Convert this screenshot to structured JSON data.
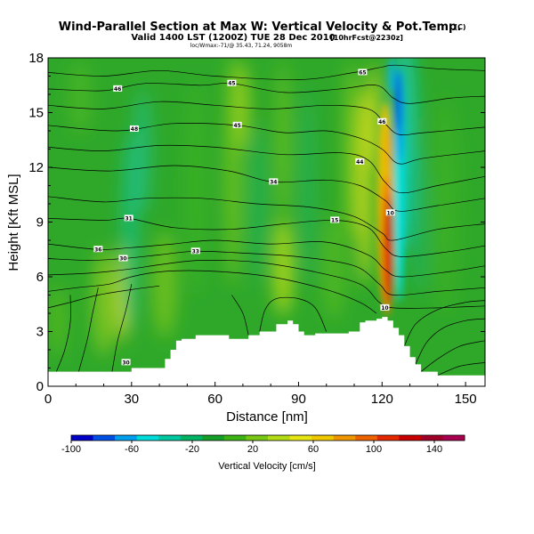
{
  "title": "Wind-Parallel Section at Max W: Vertical Velocity & Pot.Temp.",
  "title_mark": "(C)",
  "subtitle": "Valid 1400 LST (1200Z) TUE 28 Dec 2010",
  "subtitle_extra": "[10hrFcst@2230z]",
  "subtitle_small": "loc/Wmax:-71/@ 35.43, 71.24, 9058m",
  "colors": {
    "background": "#ffffff",
    "terrain": "#ffffff",
    "contour": "#000000",
    "field_base": "#2fa82a"
  },
  "chart_data": {
    "type": "heatmap",
    "xlabel": "Distance [nm]",
    "ylabel": "Height [Kft MSL]",
    "xlim": [
      0,
      157
    ],
    "ylim": [
      0,
      18
    ],
    "x_ticks": [
      0,
      30,
      60,
      90,
      120,
      150
    ],
    "x_tick_labels": [
      "0",
      "30",
      "60",
      "90",
      "120",
      "150"
    ],
    "y_ticks": [
      0,
      3,
      6,
      9,
      12,
      15,
      18
    ],
    "y_tick_labels": [
      "0",
      "3",
      "6",
      "9",
      "12",
      "15",
      "18"
    ],
    "colorbar": {
      "label": "Vertical Velocity [cm/s]",
      "min": -100,
      "max": 160,
      "tick_values": [
        -100,
        -60,
        -20,
        20,
        60,
        100,
        140
      ],
      "tick_labels": [
        "-100",
        "-60",
        "-20",
        "20",
        "60",
        "100",
        "140"
      ],
      "colors": [
        "#0000c8",
        "#0050e6",
        "#00a0f0",
        "#00dcdc",
        "#00c8a0",
        "#00b464",
        "#14a028",
        "#3cb414",
        "#78c814",
        "#b4dc14",
        "#e6e614",
        "#f0c800",
        "#f09600",
        "#f06400",
        "#e62800",
        "#c80000",
        "#a00028",
        "#aa0050"
      ]
    },
    "terrain_height_kft": [
      [
        0,
        0.8
      ],
      [
        10,
        0.8
      ],
      [
        20,
        0.8
      ],
      [
        29,
        0.8
      ],
      [
        30,
        1.0
      ],
      [
        40,
        1.0
      ],
      [
        42,
        1.5
      ],
      [
        44,
        2.0
      ],
      [
        46,
        2.5
      ],
      [
        48,
        2.6
      ],
      [
        50,
        2.6
      ],
      [
        53,
        2.8
      ],
      [
        58,
        2.8
      ],
      [
        60,
        2.8
      ],
      [
        65,
        2.6
      ],
      [
        68,
        2.6
      ],
      [
        72,
        2.8
      ],
      [
        76,
        3.0
      ],
      [
        80,
        3.0
      ],
      [
        82,
        3.4
      ],
      [
        86,
        3.6
      ],
      [
        88,
        3.4
      ],
      [
        90,
        3.0
      ],
      [
        92,
        2.8
      ],
      [
        96,
        2.9
      ],
      [
        104,
        2.9
      ],
      [
        108,
        3.0
      ],
      [
        112,
        3.5
      ],
      [
        114,
        3.6
      ],
      [
        118,
        3.7
      ],
      [
        120,
        3.8
      ],
      [
        122,
        3.6
      ],
      [
        124,
        3.2
      ],
      [
        126,
        2.8
      ],
      [
        128,
        2.2
      ],
      [
        130,
        1.6
      ],
      [
        132,
        1.2
      ],
      [
        134,
        0.8
      ],
      [
        140,
        0.6
      ],
      [
        157,
        0.4
      ]
    ],
    "velocity_features": [
      {
        "x": 124,
        "y": 8.8,
        "w_cm_s": 150
      },
      {
        "x": 123,
        "y": 12.0,
        "w_cm_s": 70
      },
      {
        "x": 125,
        "y": 15.0,
        "w_cm_s": -90
      },
      {
        "x": 127,
        "y": 12.5,
        "w_cm_s": -35
      },
      {
        "x": 108,
        "y": 12.0,
        "w_cm_s": 45
      },
      {
        "x": 27,
        "y": 3.5,
        "w_cm_s": 45
      },
      {
        "x": 79,
        "y": 7.0,
        "w_cm_s": 45
      },
      {
        "x": 28,
        "y": 10.0,
        "w_cm_s": -15
      }
    ],
    "contour_labels": [
      {
        "text": "46",
        "x": 25,
        "y": 16.3
      },
      {
        "text": "45",
        "x": 66,
        "y": 16.6
      },
      {
        "text": "48",
        "x": 31,
        "y": 14.1
      },
      {
        "text": "45",
        "x": 68,
        "y": 14.3
      },
      {
        "text": "65",
        "x": 113,
        "y": 17.2
      },
      {
        "text": "46",
        "x": 120,
        "y": 14.5
      },
      {
        "text": "44",
        "x": 112,
        "y": 12.3
      },
      {
        "text": "34",
        "x": 81,
        "y": 11.2
      },
      {
        "text": "31",
        "x": 29,
        "y": 9.2
      },
      {
        "text": "15",
        "x": 103,
        "y": 9.1
      },
      {
        "text": "36",
        "x": 18,
        "y": 7.5
      },
      {
        "text": "30",
        "x": 27,
        "y": 7.0
      },
      {
        "text": "33",
        "x": 53,
        "y": 7.4
      },
      {
        "text": "10",
        "x": 123,
        "y": 9.5
      },
      {
        "text": "10",
        "x": 121,
        "y": 4.3
      },
      {
        "text": "30",
        "x": 28,
        "y": 1.3
      }
    ],
    "contours": [
      [
        [
          0,
          17.2
        ],
        [
          20,
          17.0
        ],
        [
          40,
          17.3
        ],
        [
          60,
          17.0
        ],
        [
          90,
          16.8
        ],
        [
          110,
          17.2
        ],
        [
          120,
          17.5
        ],
        [
          125,
          17.6
        ],
        [
          140,
          17.4
        ],
        [
          157,
          17.3
        ]
      ],
      [
        [
          0,
          16.3
        ],
        [
          20,
          16.2
        ],
        [
          35,
          16.6
        ],
        [
          55,
          16.5
        ],
        [
          66,
          16.6
        ],
        [
          85,
          16.1
        ],
        [
          105,
          16.3
        ],
        [
          118,
          16.5
        ],
        [
          124,
          15.8
        ],
        [
          130,
          15.5
        ],
        [
          145,
          15.8
        ],
        [
          157,
          15.9
        ]
      ],
      [
        [
          0,
          15.4
        ],
        [
          20,
          15.2
        ],
        [
          40,
          15.6
        ],
        [
          60,
          15.4
        ],
        [
          80,
          15.2
        ],
        [
          100,
          15.4
        ],
        [
          115,
          15.2
        ],
        [
          121,
          14.4
        ],
        [
          126,
          13.8
        ],
        [
          135,
          13.9
        ],
        [
          157,
          14.2
        ]
      ],
      [
        [
          0,
          14.3
        ],
        [
          25,
          14.0
        ],
        [
          45,
          14.4
        ],
        [
          68,
          14.3
        ],
        [
          85,
          13.9
        ],
        [
          100,
          14.0
        ],
        [
          112,
          13.6
        ],
        [
          120,
          13.0
        ],
        [
          126,
          12.2
        ],
        [
          135,
          12.5
        ],
        [
          157,
          12.9
        ]
      ],
      [
        [
          0,
          13.1
        ],
        [
          20,
          12.9
        ],
        [
          40,
          13.2
        ],
        [
          60,
          13.1
        ],
        [
          85,
          12.7
        ],
        [
          105,
          12.8
        ],
        [
          115,
          12.4
        ],
        [
          121,
          11.2
        ],
        [
          127,
          10.6
        ],
        [
          140,
          11.0
        ],
        [
          157,
          11.5
        ]
      ],
      [
        [
          0,
          12.0
        ],
        [
          22,
          11.8
        ],
        [
          45,
          12.1
        ],
        [
          65,
          11.8
        ],
        [
          81,
          11.2
        ],
        [
          100,
          11.3
        ],
        [
          112,
          11.0
        ],
        [
          121,
          10.2
        ],
        [
          126,
          9.6
        ],
        [
          140,
          9.9
        ],
        [
          157,
          10.3
        ]
      ],
      [
        [
          0,
          10.4
        ],
        [
          20,
          10.1
        ],
        [
          35,
          10.3
        ],
        [
          55,
          10.3
        ],
        [
          75,
          10.0
        ],
        [
          95,
          9.8
        ],
        [
          110,
          9.3
        ],
        [
          120,
          8.4
        ],
        [
          124,
          8.0
        ],
        [
          140,
          8.6
        ],
        [
          157,
          8.9
        ]
      ],
      [
        [
          0,
          9.2
        ],
        [
          20,
          9.1
        ],
        [
          29,
          9.2
        ],
        [
          45,
          8.7
        ],
        [
          65,
          8.6
        ],
        [
          85,
          8.9
        ],
        [
          103,
          9.1
        ],
        [
          115,
          8.7
        ],
        [
          121,
          7.6
        ],
        [
          127,
          7.1
        ],
        [
          145,
          7.4
        ],
        [
          157,
          7.7
        ]
      ],
      [
        [
          0,
          7.8
        ],
        [
          18,
          7.5
        ],
        [
          30,
          7.6
        ],
        [
          45,
          7.8
        ],
        [
          60,
          8.0
        ],
        [
          80,
          7.8
        ],
        [
          100,
          7.9
        ],
        [
          115,
          7.2
        ],
        [
          121,
          6.4
        ],
        [
          127,
          6.0
        ],
        [
          145,
          6.3
        ],
        [
          157,
          6.6
        ]
      ],
      [
        [
          0,
          7.0
        ],
        [
          15,
          6.9
        ],
        [
          27,
          7.0
        ],
        [
          40,
          7.2
        ],
        [
          53,
          7.4
        ],
        [
          70,
          7.3
        ],
        [
          90,
          7.1
        ],
        [
          110,
          6.6
        ],
        [
          119,
          5.6
        ],
        [
          124,
          5.0
        ],
        [
          140,
          5.2
        ],
        [
          157,
          5.4
        ]
      ],
      [
        [
          0,
          6.1
        ],
        [
          15,
          6.2
        ],
        [
          28,
          6.4
        ],
        [
          42,
          6.7
        ],
        [
          55,
          6.9
        ],
        [
          75,
          6.8
        ],
        [
          95,
          6.3
        ],
        [
          112,
          5.6
        ],
        [
          119,
          4.6
        ],
        [
          124,
          4.3
        ],
        [
          140,
          4.3
        ],
        [
          157,
          4.4
        ]
      ],
      [
        [
          0,
          5.2
        ],
        [
          10,
          5.4
        ],
        [
          22,
          5.6
        ],
        [
          30,
          6.0
        ],
        [
          42,
          6.3
        ],
        [
          60,
          6.3
        ],
        [
          80,
          6.0
        ],
        [
          100,
          5.3
        ],
        [
          112,
          4.6
        ],
        [
          118,
          4.0
        ]
      ],
      [
        [
          0,
          4.3
        ],
        [
          8,
          4.6
        ],
        [
          18,
          5.0
        ],
        [
          30,
          5.3
        ],
        [
          40,
          5.5
        ]
      ],
      [
        [
          3,
          0.8
        ],
        [
          6,
          2.0
        ],
        [
          8,
          3.5
        ],
        [
          8,
          5.0
        ]
      ],
      [
        [
          11,
          0.8
        ],
        [
          14,
          2.5
        ],
        [
          16,
          4.0
        ],
        [
          18,
          5.4
        ]
      ],
      [
        [
          23,
          0.8
        ],
        [
          25,
          2.5
        ],
        [
          28,
          4.2
        ],
        [
          30,
          5.6
        ]
      ],
      [
        [
          76,
          3.0
        ],
        [
          78,
          4.2
        ],
        [
          82,
          4.8
        ],
        [
          90,
          4.8
        ],
        [
          96,
          4.3
        ],
        [
          100,
          3.0
        ]
      ],
      [
        [
          72,
          2.8
        ],
        [
          70,
          4.0
        ],
        [
          66,
          5.0
        ]
      ],
      [
        [
          132,
          1.2
        ],
        [
          136,
          2.4
        ],
        [
          142,
          3.2
        ],
        [
          150,
          3.6
        ],
        [
          157,
          3.7
        ]
      ],
      [
        [
          134,
          0.8
        ],
        [
          140,
          1.5
        ],
        [
          148,
          2.2
        ],
        [
          157,
          2.5
        ]
      ],
      [
        [
          140,
          0.6
        ],
        [
          148,
          1.1
        ],
        [
          157,
          1.3
        ]
      ],
      [
        [
          128,
          2.2
        ],
        [
          132,
          3.4
        ],
        [
          140,
          4.2
        ],
        [
          150,
          4.6
        ],
        [
          157,
          4.7
        ]
      ]
    ]
  }
}
